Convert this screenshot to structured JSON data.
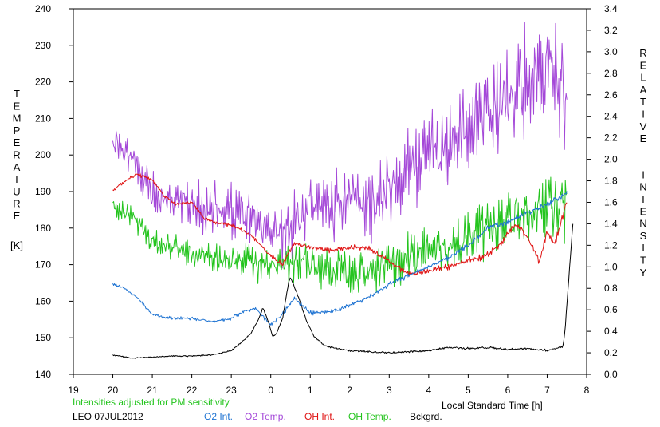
{
  "chart_data": {
    "type": "line",
    "left_axis": {
      "label_letters": [
        "T",
        "E",
        "M",
        "P",
        "E",
        "R",
        "A",
        "T",
        "U",
        "R",
        "E"
      ],
      "unit": "[K]",
      "ylim": [
        140,
        240
      ],
      "ticks": [
        "140",
        "150",
        "160",
        "170",
        "180",
        "190",
        "200",
        "210",
        "220",
        "230",
        "240"
      ]
    },
    "right_axis": {
      "label_words": [
        [
          "R",
          "E",
          "L",
          "A",
          "T",
          "I",
          "V",
          "E"
        ],
        [
          "I",
          "N",
          "T",
          "E",
          "N",
          "S",
          "I",
          "T",
          "Y"
        ]
      ],
      "ylim": [
        0.0,
        3.4
      ],
      "ticks": [
        "0.0",
        "0.2",
        "0.4",
        "0.6",
        "0.8",
        "1.0",
        "1.2",
        "1.4",
        "1.6",
        "1.8",
        "2.0",
        "2.2",
        "2.4",
        "2.6",
        "2.8",
        "3.0",
        "3.2",
        "3.4"
      ]
    },
    "x_axis": {
      "label": "Local Standard Time [h]",
      "xlim": [
        19,
        32
      ],
      "ticks": [
        "19",
        "20",
        "21",
        "22",
        "23",
        "0",
        "1",
        "2",
        "3",
        "4",
        "5",
        "6",
        "7",
        "8"
      ]
    },
    "note": "Intensities adjusted for PM sensitivity",
    "station": "LEO 07JUL2012",
    "legend": [
      {
        "label": "O2 Int.",
        "color": "#1e73d2"
      },
      {
        "label": "O2 Temp.",
        "color": "#a448d8"
      },
      {
        "label": "OH Int.",
        "color": "#e01414"
      },
      {
        "label": "OH Temp.",
        "color": "#24c41e"
      },
      {
        "label": "Bckgrd.",
        "color": "#000000"
      }
    ],
    "series": [
      {
        "name": "O2 Temp.",
        "axis": "left",
        "color": "#a448d8",
        "noise": [
          5,
          16
        ],
        "x": [
          20.0,
          20.5,
          21.0,
          21.5,
          22.0,
          22.5,
          23.0,
          23.5,
          24.0,
          24.5,
          25.0,
          25.5,
          26.0,
          26.5,
          27.0,
          27.5,
          28.0,
          28.5,
          29.0,
          29.5,
          30.0,
          30.5,
          31.0,
          31.5
        ],
        "y": [
          205,
          199,
          189,
          187,
          186,
          185,
          184,
          182,
          177,
          180,
          186,
          185,
          188,
          187,
          190,
          195,
          200,
          203,
          207,
          211,
          215,
          220,
          224,
          216
        ]
      },
      {
        "name": "OH Temp.",
        "axis": "left",
        "color": "#24c41e",
        "noise": [
          3,
          10
        ],
        "x": [
          20.0,
          20.5,
          21.0,
          21.5,
          22.0,
          22.5,
          23.0,
          23.5,
          24.0,
          24.5,
          25.0,
          25.5,
          26.0,
          26.5,
          27.0,
          27.5,
          28.0,
          28.5,
          29.0,
          29.5,
          30.0,
          30.5,
          31.0,
          31.5
        ],
        "y": [
          186,
          183,
          177,
          175,
          173,
          172,
          171,
          170,
          170,
          171,
          170,
          169,
          168,
          169,
          170,
          172,
          174,
          175,
          177,
          180,
          183,
          184,
          185,
          187
        ]
      },
      {
        "name": "OH Int.",
        "axis": "right",
        "color": "#e01414",
        "noise": [
          0.015,
          0.035
        ],
        "x": [
          20.0,
          20.3,
          20.6,
          21.0,
          21.3,
          21.6,
          22.0,
          22.3,
          22.6,
          23.0,
          23.5,
          24.0,
          24.3,
          24.6,
          25.0,
          25.5,
          26.0,
          26.5,
          27.0,
          27.5,
          28.0,
          28.5,
          29.0,
          29.4,
          29.8,
          30.2,
          30.5,
          30.8,
          31.0,
          31.2,
          31.5
        ],
        "y": [
          1.71,
          1.8,
          1.86,
          1.81,
          1.66,
          1.58,
          1.6,
          1.46,
          1.4,
          1.39,
          1.3,
          1.1,
          1.02,
          1.22,
          1.18,
          1.15,
          1.18,
          1.17,
          1.05,
          0.93,
          0.96,
          1.0,
          1.06,
          1.09,
          1.2,
          1.4,
          1.28,
          1.05,
          1.33,
          1.22,
          1.6
        ]
      },
      {
        "name": "O2 Int.",
        "axis": "right",
        "color": "#1e73d2",
        "noise": [
          0.015,
          0.03
        ],
        "x": [
          20.0,
          20.3,
          20.6,
          21.0,
          21.5,
          22.0,
          22.5,
          23.0,
          23.3,
          23.6,
          24.0,
          24.3,
          24.6,
          25.0,
          25.5,
          26.0,
          26.5,
          27.0,
          27.5,
          28.0,
          28.5,
          29.0,
          29.5,
          30.0,
          30.5,
          31.0,
          31.5
        ],
        "y": [
          0.84,
          0.8,
          0.72,
          0.56,
          0.52,
          0.52,
          0.49,
          0.52,
          0.58,
          0.62,
          0.46,
          0.56,
          0.71,
          0.57,
          0.58,
          0.64,
          0.72,
          0.84,
          0.92,
          1.0,
          1.08,
          1.2,
          1.36,
          1.42,
          1.5,
          1.58,
          1.68
        ]
      },
      {
        "name": "Bckgrd.",
        "axis": "right",
        "color": "#000000",
        "noise": [
          0.005,
          0.012
        ],
        "x": [
          20.0,
          20.5,
          21.0,
          21.5,
          22.0,
          22.5,
          23.0,
          23.2,
          23.5,
          23.7,
          23.8,
          23.95,
          24.05,
          24.15,
          24.3,
          24.45,
          24.5,
          24.7,
          24.9,
          25.1,
          25.4,
          25.7,
          26.0,
          26.5,
          27.0,
          27.5,
          28.0,
          28.5,
          29.0,
          29.5,
          30.0,
          30.5,
          31.0,
          31.4,
          31.45,
          31.55,
          31.65
        ],
        "y": [
          0.18,
          0.15,
          0.16,
          0.17,
          0.17,
          0.18,
          0.22,
          0.28,
          0.38,
          0.52,
          0.62,
          0.48,
          0.35,
          0.38,
          0.52,
          0.85,
          0.9,
          0.72,
          0.5,
          0.35,
          0.26,
          0.24,
          0.22,
          0.21,
          0.2,
          0.21,
          0.22,
          0.25,
          0.24,
          0.25,
          0.23,
          0.24,
          0.22,
          0.26,
          0.4,
          0.9,
          1.4
        ]
      }
    ]
  }
}
